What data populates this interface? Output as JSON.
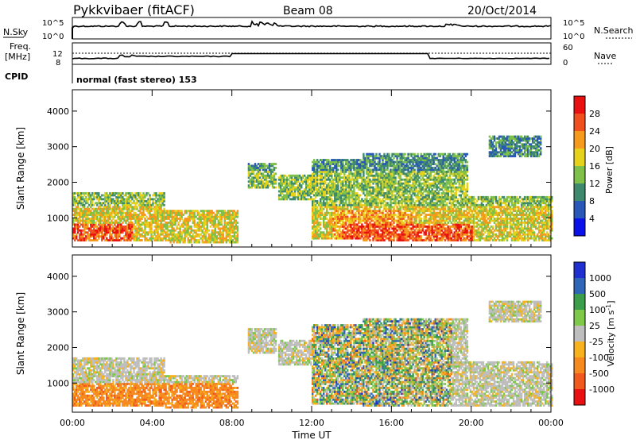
{
  "header": {
    "radar": "Pykkvibaer (fitACF)",
    "beam": "Beam 08",
    "date": "20/Oct/2014"
  },
  "side_labels": {
    "nsky": "N.Sky",
    "nsearch": "N.Search",
    "freq_line1": "Freq.",
    "freq_line2": "[MHz]",
    "nave": "Nave",
    "cpid": "CPID"
  },
  "top_panels": {
    "nsky_ticks": [
      "10^5",
      "10^0"
    ],
    "nsearch_ticks": [
      "10^5",
      "10^0"
    ],
    "freq_ticks": [
      "12",
      "8"
    ],
    "nave_ticks": [
      "60",
      "0"
    ],
    "cpid_text": "normal (fast stereo) 153"
  },
  "chart_data": [
    {
      "type": "heatmap",
      "quantity": "power",
      "ylabel": "Slant Range [km]",
      "xlabel": "Time UT",
      "ylim": [
        180,
        4600
      ],
      "xlim_hours": [
        0,
        24
      ],
      "y_ticks": [
        "1000",
        "2000",
        "3000",
        "4000"
      ],
      "colorbar_label": "Power [dB]",
      "colorbar_ticks": [
        "4",
        "8",
        "12",
        "16",
        "20",
        "24",
        "28"
      ],
      "colorbar_colors": [
        "#0a10e8",
        "#2a58b8",
        "#3f8a6e",
        "#7ec04a",
        "#e6d21a",
        "#f59a1d",
        "#f0501e",
        "#e81010"
      ],
      "echo_regions_hours_km": [
        {
          "t": [
            0.0,
            4.6
          ],
          "r": [
            300,
            1700
          ]
        },
        {
          "t": [
            4.6,
            8.3
          ],
          "r": [
            250,
            1200
          ]
        },
        {
          "t": [
            8.8,
            10.2
          ],
          "r": [
            1800,
            2500
          ]
        },
        {
          "t": [
            10.3,
            12.0
          ],
          "r": [
            1500,
            2200
          ]
        },
        {
          "t": [
            12.0,
            14.5
          ],
          "r": [
            400,
            2600
          ]
        },
        {
          "t": [
            14.5,
            19.8
          ],
          "r": [
            300,
            2800
          ]
        },
        {
          "t": [
            19.8,
            24.0
          ],
          "r": [
            300,
            1600
          ]
        },
        {
          "t": [
            20.8,
            23.5
          ],
          "r": [
            2700,
            3300
          ]
        }
      ]
    },
    {
      "type": "heatmap",
      "quantity": "velocity",
      "ylabel": "Slant Range [km]",
      "xlabel": "Time UT",
      "ylim": [
        180,
        4600
      ],
      "xlim_hours": [
        0,
        24
      ],
      "y_ticks": [
        "1000",
        "2000",
        "3000",
        "4000"
      ],
      "colorbar_label": "Velocity [m s^-1]",
      "colorbar_ticks": [
        "1000",
        "500",
        "100",
        "25",
        "-25",
        "-100",
        "-500",
        "-1000"
      ],
      "colorbar_colors": [
        "#2030d0",
        "#2f66b8",
        "#3c9e4a",
        "#7ec84a",
        "#bebebe",
        "#f7b21e",
        "#f68a1e",
        "#f05a1e",
        "#e81010"
      ]
    }
  ],
  "x_axis": {
    "ticks": [
      "00:00",
      "04:00",
      "08:00",
      "12:00",
      "16:00",
      "20:00",
      "00:00"
    ],
    "label": "Time UT"
  }
}
